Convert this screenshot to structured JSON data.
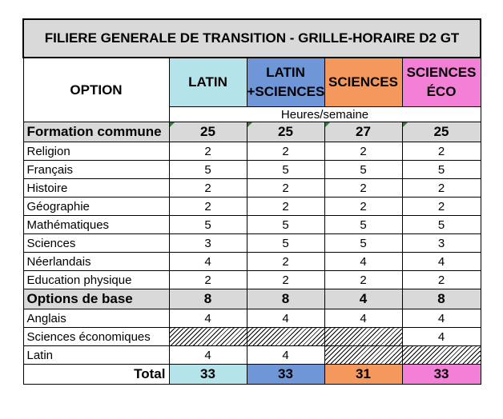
{
  "title": "FILIERE GENERALE DE TRANSITION - GRILLE-HORAIRE D2 GT",
  "option_label": "OPTION",
  "columns": [
    {
      "line1": "LATIN",
      "line2": ""
    },
    {
      "line1": "LATIN",
      "line2": "+SCIENCES"
    },
    {
      "line1": "SCIENCES",
      "line2": ""
    },
    {
      "line1": "SCIENCES",
      "line2": "ÉCO"
    }
  ],
  "units": "Heures/semaine",
  "formation_commune": {
    "label": "Formation commune",
    "values": [
      "25",
      "25",
      "27",
      "25"
    ]
  },
  "common_rows": [
    {
      "label": "Religion",
      "values": [
        "2",
        "2",
        "2",
        "2"
      ]
    },
    {
      "label": "Français",
      "values": [
        "5",
        "5",
        "5",
        "5"
      ]
    },
    {
      "label": "Histoire",
      "values": [
        "2",
        "2",
        "2",
        "2"
      ]
    },
    {
      "label": "Géographie",
      "values": [
        "2",
        "2",
        "2",
        "2"
      ]
    },
    {
      "label": "Mathématiques",
      "values": [
        "5",
        "5",
        "5",
        "5"
      ]
    },
    {
      "label": "Sciences",
      "values": [
        "3",
        "5",
        "5",
        "3"
      ]
    },
    {
      "label": "Néerlandais",
      "values": [
        "4",
        "2",
        "4",
        "4"
      ]
    },
    {
      "label": "Education physique",
      "values": [
        "2",
        "2",
        "2",
        "2"
      ]
    }
  ],
  "options_de_base": {
    "label": "Options de base",
    "values": [
      "8",
      "8",
      "4",
      "8"
    ]
  },
  "option_rows": [
    {
      "label": "Anglais",
      "values": [
        "4",
        "4",
        "4",
        "4"
      ],
      "hatched": [
        false,
        false,
        false,
        false
      ]
    },
    {
      "label": "Sciences économiques",
      "values": [
        "",
        "",
        "",
        "4"
      ],
      "hatched": [
        true,
        true,
        true,
        false
      ]
    },
    {
      "label": "Latin",
      "values": [
        "4",
        "4",
        "",
        ""
      ],
      "hatched": [
        false,
        false,
        true,
        true
      ]
    }
  ],
  "total": {
    "label": "Total",
    "values": [
      "33",
      "33",
      "31",
      "33"
    ]
  },
  "colors": {
    "latin": "#b4e4ea",
    "latin_sciences": "#6f97d8",
    "sciences": "#f5985e",
    "sciences_eco": "#f37fd7",
    "section_grey": "#d9d9d9"
  }
}
